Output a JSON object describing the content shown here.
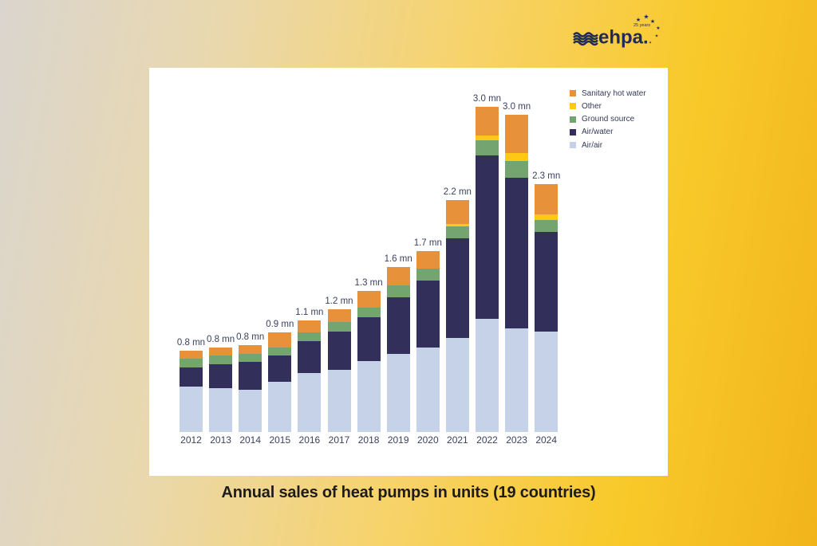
{
  "logo": {
    "brand": "ehpa.",
    "anniversary": "25 years",
    "color": "#1F2A56"
  },
  "chart_title": "Annual sales of heat pumps in units (19 countries)",
  "colors": {
    "background_left": "#DAD5CE",
    "background_gold": "#F8C929",
    "panel": "#FFFFFF",
    "label_text": "#3A4160",
    "title_text": "#1D1C1A"
  },
  "legend": [
    {
      "label": "Sanitary hot water",
      "color": "#E8913B"
    },
    {
      "label": "Other",
      "color": "#FFC913"
    },
    {
      "label": "Ground source",
      "color": "#74A46F"
    },
    {
      "label": "Air/water",
      "color": "#32305A"
    },
    {
      "label": "Air/air",
      "color": "#C5D2E8"
    }
  ],
  "chart_data": {
    "type": "bar",
    "stacked": true,
    "title": "Annual sales of heat pumps in units (19 countries)",
    "unit": "million units",
    "legend_position": "top-right",
    "axes_visible": false,
    "gridlines": false,
    "ylim": [
      0,
      3.2
    ],
    "categories": [
      "2012",
      "2013",
      "2014",
      "2015",
      "2016",
      "2017",
      "2018",
      "2019",
      "2020",
      "2021",
      "2022",
      "2023",
      "2024"
    ],
    "series": [
      {
        "name": "Air/air",
        "color": "#C5D2E8",
        "values": [
          0.43,
          0.41,
          0.4,
          0.47,
          0.56,
          0.59,
          0.67,
          0.74,
          0.8,
          0.89,
          1.07,
          0.98,
          0.95
        ]
      },
      {
        "name": "Air/water",
        "color": "#32305A",
        "values": [
          0.18,
          0.23,
          0.26,
          0.25,
          0.3,
          0.36,
          0.41,
          0.53,
          0.63,
          0.94,
          1.54,
          1.42,
          0.94
        ]
      },
      {
        "name": "Ground source",
        "color": "#74A46F",
        "values": [
          0.08,
          0.08,
          0.08,
          0.08,
          0.08,
          0.09,
          0.09,
          0.11,
          0.11,
          0.11,
          0.14,
          0.16,
          0.11
        ]
      },
      {
        "name": "Other",
        "color": "#FFC913",
        "values": [
          0,
          0,
          0,
          0,
          0,
          0,
          0,
          0,
          0,
          0.02,
          0.05,
          0.07,
          0.05
        ]
      },
      {
        "name": "Sanitary hot water",
        "color": "#E8913B",
        "values": [
          0.08,
          0.08,
          0.08,
          0.14,
          0.11,
          0.12,
          0.16,
          0.18,
          0.17,
          0.23,
          0.27,
          0.36,
          0.29
        ]
      }
    ],
    "totals_labels": [
      "0.8 mn",
      "0.8 mn",
      "0.8 mn",
      "0.9 mn",
      "1.1 mn",
      "1.2 mn",
      "1.3 mn",
      "1.6 mn",
      "1.7 mn",
      "2.2 mn",
      "3.0 mn",
      "3.0 mn",
      "2.3 mn"
    ]
  }
}
